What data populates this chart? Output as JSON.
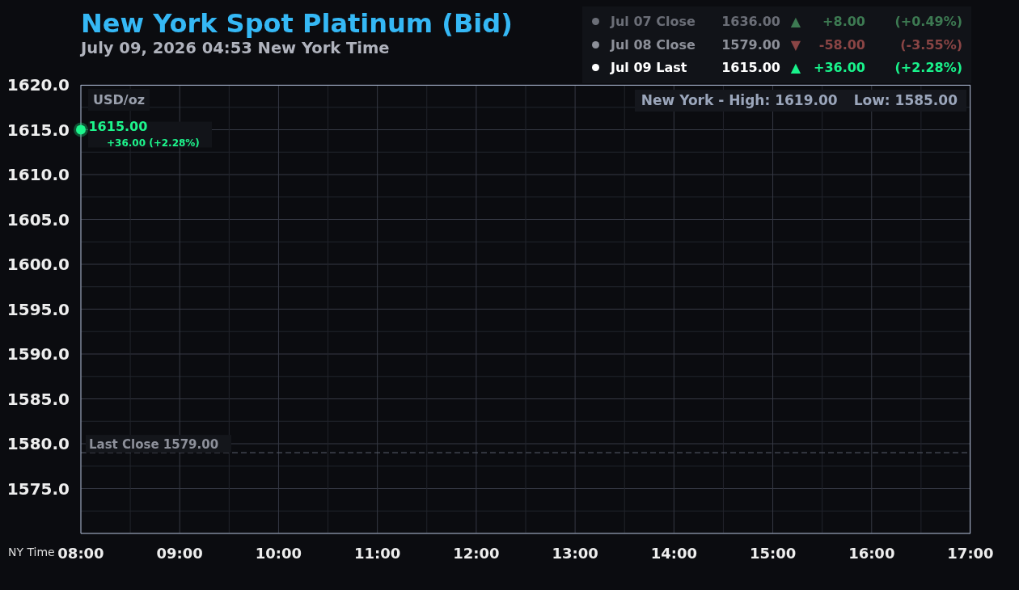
{
  "chart_data": {
    "type": "scatter",
    "title": "New York Spot Platinum (Bid)",
    "subtitle": "July 09, 2026 04:53 New York Time",
    "xlabel": "NY Time",
    "ylabel": "USD/oz",
    "x": [
      8
    ],
    "values": [
      1615
    ],
    "value_labels": [
      "1615.00"
    ],
    "color": "#1df58c",
    "marker": "circle",
    "xlim": [
      8,
      17
    ],
    "xticks": [
      {
        "value": 8,
        "label": "08:00"
      },
      {
        "value": 8.5,
        "label": null
      },
      {
        "value": 9,
        "label": "09:00"
      },
      {
        "value": 9.5,
        "label": null
      },
      {
        "value": 10,
        "label": "10:00"
      },
      {
        "value": 10.5,
        "label": null
      },
      {
        "value": 11,
        "label": "11:00"
      },
      {
        "value": 11.5,
        "label": null
      },
      {
        "value": 12,
        "label": "12:00"
      },
      {
        "value": 12.5,
        "label": null
      },
      {
        "value": 13,
        "label": "13:00"
      },
      {
        "value": 13.5,
        "label": null
      },
      {
        "value": 14,
        "label": "14:00"
      },
      {
        "value": 14.5,
        "label": null
      },
      {
        "value": 15,
        "label": "15:00"
      },
      {
        "value": 15.5,
        "label": null
      },
      {
        "value": 16,
        "label": "16:00"
      },
      {
        "value": 16.5,
        "label": null
      },
      {
        "value": 17,
        "label": "17:00"
      }
    ],
    "ylim": [
      1570,
      1620
    ],
    "yticks": [
      {
        "value": 1572.5,
        "label": null
      },
      {
        "value": 1575,
        "label": "1575.0"
      },
      {
        "value": 1577.5,
        "label": null
      },
      {
        "value": 1580,
        "label": "1580.0"
      },
      {
        "value": 1582.5,
        "label": null
      },
      {
        "value": 1585,
        "label": "1585.0"
      },
      {
        "value": 1587.5,
        "label": null
      },
      {
        "value": 1590,
        "label": "1590.0"
      },
      {
        "value": 1592.5,
        "label": null
      },
      {
        "value": 1595,
        "label": "1595.0"
      },
      {
        "value": 1597.5,
        "label": null
      },
      {
        "value": 1600,
        "label": "1600.0"
      },
      {
        "value": 1602.5,
        "label": null
      },
      {
        "value": 1605,
        "label": "1605.0"
      },
      {
        "value": 1607.5,
        "label": null
      },
      {
        "value": 1610,
        "label": "1610.0"
      },
      {
        "value": 1612.5,
        "label": null
      },
      {
        "value": 1615,
        "label": "1615.0"
      },
      {
        "value": 1617.5,
        "label": null
      },
      {
        "value": 1620,
        "label": "1620.0"
      }
    ],
    "grid": true,
    "ref_lines": [
      {
        "axis": "y",
        "value": 1579,
        "label": "Last Close 1579.00",
        "color": "#5c6170",
        "line_style": "dashed"
      }
    ],
    "annotations": [
      "Jul 07 Close",
      "1636.00",
      "▲",
      "+8.00",
      "(+0.49%)",
      "Jul 08 Close",
      "1579.00",
      "▼",
      "-58.00",
      "(-3.55%)",
      "Jul 09 Last",
      "1615.00",
      "▲",
      "+36.00",
      "(+2.28%)",
      "New York - High: 1619.00",
      "Low: 1585.00",
      {
        "text": "+36.00 (+2.28%)",
        "x": 8,
        "y": 1615
      }
    ]
  }
}
